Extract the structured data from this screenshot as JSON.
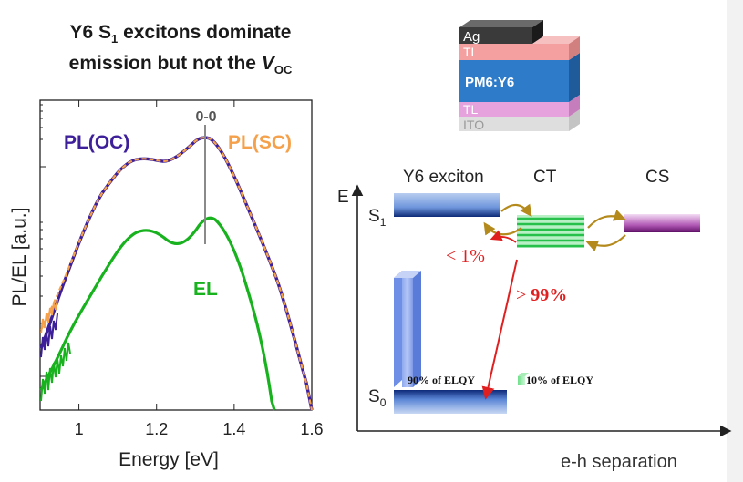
{
  "title": {
    "prefix": "Y6 S",
    "subscript": "1",
    "line1_rest": " excitons dominate",
    "line2": "emission but not the ",
    "voc_main": "V",
    "voc_sub": "OC"
  },
  "plot": {
    "xlabel": "Energy [eV]",
    "ylabel": "PL/EL [a.u.]",
    "xticks": [
      "1",
      "1.2",
      "1.4",
      "1.6"
    ],
    "xlim": [
      0.9,
      1.6
    ],
    "peak_label": "0-0",
    "series": [
      {
        "name": "PL(OC)",
        "color": "#3d1f99"
      },
      {
        "name": "PL(SC)",
        "color": "#f5a04a"
      },
      {
        "name": "EL",
        "color": "#19b21f"
      }
    ]
  },
  "stack": {
    "layers": [
      {
        "label": "Ag",
        "color": "#3a3a3a"
      },
      {
        "label": "TL",
        "color": "#f4a0a0"
      },
      {
        "label": "PM6:Y6",
        "color": "#2e7bc9"
      },
      {
        "label": "TL",
        "color": "#e6a2dd"
      },
      {
        "label": "ITO",
        "color": "#dedede"
      }
    ]
  },
  "energy": {
    "axis_e": "E",
    "s1": "S",
    "s1_sub": "1",
    "s0": "S",
    "s0_sub": "0",
    "col_exciton": "Y6 exciton",
    "col_ct": "CT",
    "col_cs": "CS",
    "xlabel": "e-h separation",
    "pct_small": "< 1%",
    "pct_large_prefix": "> ",
    "pct_large": "99%",
    "elqy_90_pct": "90%",
    "elqy_90_rest": " of ELQY",
    "elqy_10_pct": "10%",
    "elqy_10_rest": " of ELQY"
  }
}
